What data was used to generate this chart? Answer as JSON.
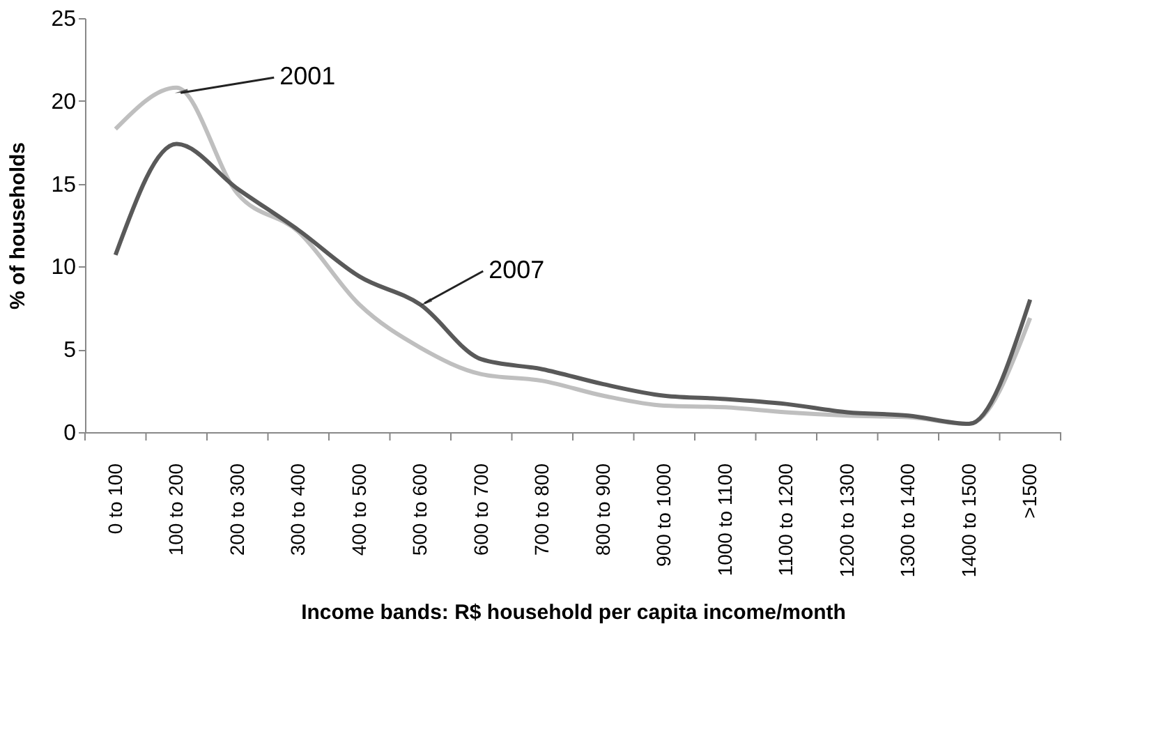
{
  "chart_data": {
    "type": "line",
    "xlabel": "Income bands: R$ household per capita income/month",
    "ylabel": "% of households",
    "categories": [
      "0 to 100",
      "100 to 200",
      "200 to 300",
      "300 to 400",
      "400 to 500",
      "500 to 600",
      "600 to 700",
      "700 to 800",
      "800 to 900",
      "900 to 1000",
      "1000 to 1100",
      "1100 to 1200",
      "1200 to 1300",
      "1300 to 1400",
      "1400 to 1500",
      ">1500"
    ],
    "series": [
      {
        "color": "#bfbfbf",
        "values": [
          18.3,
          20.8,
          14.4,
          12.1,
          7.7,
          5.1,
          3.5,
          3.1,
          2.2,
          1.6,
          1.5,
          1.2,
          1.0,
          0.9,
          0.5,
          6.9
        ]
      },
      {
        "color": "#595959",
        "values": [
          10.7,
          17.4,
          14.7,
          12.2,
          9.4,
          7.7,
          4.4,
          3.8,
          2.9,
          2.2,
          2.0,
          1.7,
          1.2,
          1.0,
          0.5,
          8.0
        ]
      }
    ],
    "ylim": [
      0,
      25
    ],
    "yticks": [
      0,
      5,
      10,
      15,
      20,
      25
    ],
    "grid": false,
    "marker": "none",
    "line_style": "solid",
    "annotations": [
      {
        "text": "2001",
        "x": "100 to 200",
        "y": 20.4
      },
      {
        "text": "2007",
        "x": "500 to 600",
        "y": 7.7
      }
    ]
  }
}
